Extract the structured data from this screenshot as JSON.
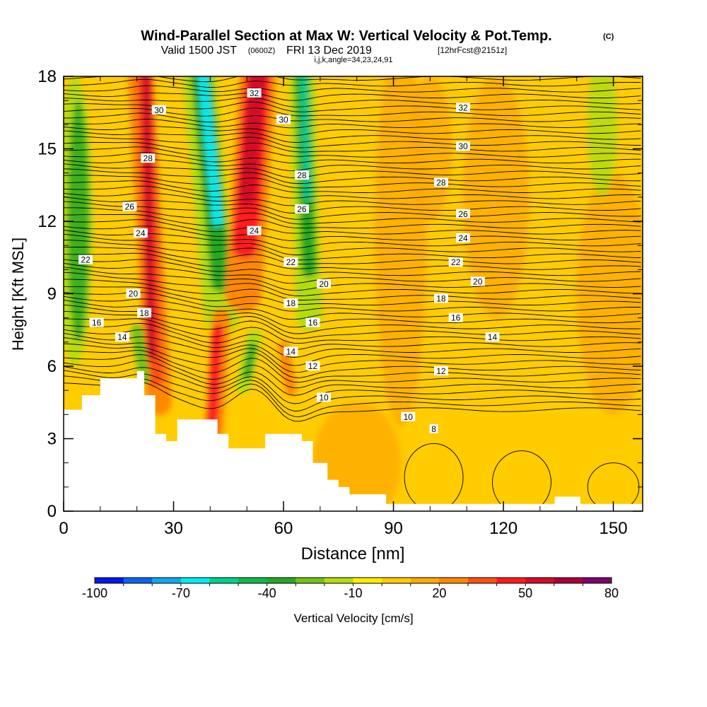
{
  "title": {
    "main": "Wind-Parallel Section at Max W: Vertical Velocity & Pot.Temp.",
    "copyright": "(C)",
    "valid_prefix": "Valid 1500 JST",
    "valid_utc": "(0600Z)",
    "valid_date": "FRI 13 Dec 2019",
    "forecast_info": "[12hrFcst@2151z]",
    "params": "i,j,k,angle=34,23,24,91"
  },
  "chart_data": {
    "type": "heatmap",
    "xlabel": "Distance [nm]",
    "ylabel": "Height [Kft MSL]",
    "xlim": [
      0,
      158
    ],
    "ylim": [
      0,
      18
    ],
    "x_ticks": [
      0,
      30,
      60,
      90,
      120,
      150
    ],
    "y_ticks": [
      0,
      3,
      6,
      9,
      12,
      15,
      18
    ],
    "colorbar": {
      "label": "Vertical Velocity [cm/s]",
      "tick_labels": [
        "-100",
        "-70",
        "-40",
        "-10",
        "20",
        "50",
        "80"
      ],
      "levels": [
        -100,
        -90,
        -80,
        -70,
        -60,
        -50,
        -40,
        -30,
        -20,
        -10,
        0,
        10,
        20,
        30,
        40,
        50,
        60,
        70,
        80
      ],
      "colors": [
        "#0018ee",
        "#0b64f0",
        "#12a8ee",
        "#00eeee",
        "#00d08a",
        "#10b84a",
        "#28a820",
        "#6cc418",
        "#b4dc10",
        "#ffee00",
        "#ffcc00",
        "#ffaa00",
        "#ff8800",
        "#ff5010",
        "#ff1a1a",
        "#d40c28",
        "#a8003c",
        "#7e006e"
      ]
    },
    "terrain_profile": [
      [
        0,
        4.2
      ],
      [
        5,
        4.8
      ],
      [
        10,
        5.5
      ],
      [
        20,
        5.8
      ],
      [
        22,
        4.8
      ],
      [
        25,
        3.2
      ],
      [
        28,
        2.9
      ],
      [
        31,
        3.8
      ],
      [
        42,
        3.2
      ],
      [
        45,
        2.6
      ],
      [
        50,
        2.6
      ],
      [
        55,
        3.2
      ],
      [
        63,
        3.2
      ],
      [
        65,
        2.9
      ],
      [
        68,
        2.0
      ],
      [
        72,
        1.3
      ],
      [
        75,
        1.0
      ],
      [
        78,
        0.7
      ],
      [
        84,
        0.7
      ],
      [
        88,
        0.3
      ],
      [
        133,
        0.3
      ],
      [
        134,
        0.6
      ],
      [
        140,
        0.6
      ],
      [
        141,
        0.3
      ],
      [
        158,
        0.3
      ]
    ],
    "velocity_features": [
      {
        "sign": "up",
        "x": 23,
        "y_range": [
          3,
          18
        ],
        "peak": 50
      },
      {
        "sign": "down",
        "x": 38,
        "y_range": [
          6,
          18
        ],
        "peak": -70
      },
      {
        "sign": "up",
        "x": 41,
        "y_range": [
          3,
          8
        ],
        "peak": 50
      },
      {
        "sign": "up",
        "x": 52,
        "y_range": [
          11,
          18
        ],
        "peak": 60
      },
      {
        "sign": "down",
        "x": 51,
        "y_range": [
          5,
          7
        ],
        "peak": -40
      },
      {
        "sign": "down",
        "x": 66,
        "y_range": [
          10,
          18
        ],
        "peak": -60
      },
      {
        "sign": "down",
        "x": 4,
        "y_range": [
          6,
          18
        ],
        "peak": -40
      },
      {
        "sign": "down",
        "x": 147,
        "y_range": [
          13,
          18
        ],
        "peak": -10
      }
    ],
    "isentrope_labels": [
      {
        "text": "32",
        "x": 52,
        "y": 17.3
      },
      {
        "text": "30",
        "x": 26,
        "y": 16.6
      },
      {
        "text": "30",
        "x": 60,
        "y": 16.2
      },
      {
        "text": "28",
        "x": 23,
        "y": 14.6
      },
      {
        "text": "28",
        "x": 65,
        "y": 13.9
      },
      {
        "text": "26",
        "x": 18,
        "y": 12.6
      },
      {
        "text": "26",
        "x": 65,
        "y": 12.5
      },
      {
        "text": "24",
        "x": 21,
        "y": 11.5
      },
      {
        "text": "24",
        "x": 52,
        "y": 11.6
      },
      {
        "text": "22",
        "x": 6,
        "y": 10.4
      },
      {
        "text": "22",
        "x": 62,
        "y": 10.3
      },
      {
        "text": "20",
        "x": 19,
        "y": 9.0
      },
      {
        "text": "20",
        "x": 71,
        "y": 9.4
      },
      {
        "text": "18",
        "x": 22,
        "y": 8.2
      },
      {
        "text": "18",
        "x": 62,
        "y": 8.6
      },
      {
        "text": "16",
        "x": 9,
        "y": 7.8
      },
      {
        "text": "16",
        "x": 68,
        "y": 7.8
      },
      {
        "text": "14",
        "x": 16,
        "y": 7.2
      },
      {
        "text": "14",
        "x": 62,
        "y": 6.6
      },
      {
        "text": "12",
        "x": 68,
        "y": 6.0
      },
      {
        "text": "10",
        "x": 71,
        "y": 4.7
      },
      {
        "text": "32",
        "x": 109,
        "y": 16.7
      },
      {
        "text": "30",
        "x": 109,
        "y": 15.1
      },
      {
        "text": "28",
        "x": 103,
        "y": 13.6
      },
      {
        "text": "26",
        "x": 109,
        "y": 12.3
      },
      {
        "text": "24",
        "x": 109,
        "y": 11.3
      },
      {
        "text": "22",
        "x": 107,
        "y": 10.3
      },
      {
        "text": "20",
        "x": 113,
        "y": 9.5
      },
      {
        "text": "18",
        "x": 103,
        "y": 8.8
      },
      {
        "text": "16",
        "x": 107,
        "y": 8.0
      },
      {
        "text": "14",
        "x": 117,
        "y": 7.2
      },
      {
        "text": "12",
        "x": 103,
        "y": 5.8
      },
      {
        "text": "10",
        "x": 94,
        "y": 3.9
      },
      {
        "text": "8",
        "x": 101,
        "y": 3.4
      }
    ]
  }
}
